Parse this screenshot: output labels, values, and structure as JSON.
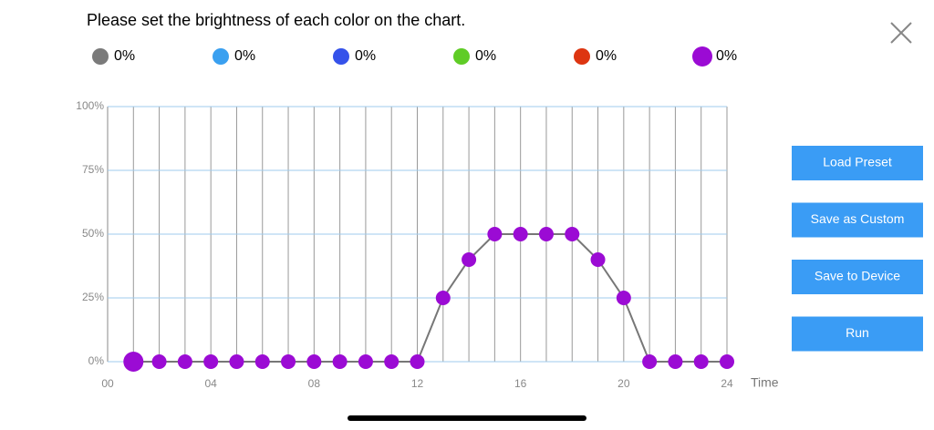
{
  "header": {
    "title": "Please set the brightness of each color on the chart."
  },
  "legend": [
    {
      "color": "#7a7a7a",
      "value": 0,
      "value_label": "0%"
    },
    {
      "color": "#3aa0f0",
      "value": 0,
      "value_label": "0%"
    },
    {
      "color": "#3552ea",
      "value": 0,
      "value_label": "0%"
    },
    {
      "color": "#5fcc26",
      "value": 0,
      "value_label": "0%"
    },
    {
      "color": "#dd3511",
      "value": 0,
      "value_label": "0%"
    },
    {
      "color": "#9b0bd4",
      "value": 0,
      "value_label": "0%"
    }
  ],
  "buttons": [
    "Load Preset",
    "Save as Custom",
    "Save to Device",
    "Run"
  ],
  "chart_data": {
    "type": "line",
    "xlabel": "Time",
    "x": [
      1,
      2,
      3,
      4,
      5,
      6,
      7,
      8,
      9,
      10,
      11,
      12,
      13,
      14,
      15,
      16,
      17,
      18,
      19,
      20,
      21,
      22,
      23,
      24
    ],
    "values": [
      0,
      0,
      0,
      0,
      0,
      0,
      0,
      0,
      0,
      0,
      0,
      0,
      25,
      40,
      50,
      50,
      50,
      50,
      40,
      25,
      0,
      0,
      0,
      0
    ],
    "color": "#9b0bd4",
    "line_color": "#777777",
    "xlim": [
      0,
      24
    ],
    "xticks": [
      {
        "value": 0,
        "label": "00"
      },
      {
        "value": 4,
        "label": "04"
      },
      {
        "value": 8,
        "label": "08"
      },
      12,
      16,
      20,
      24
    ],
    "ylim": [
      0,
      100
    ],
    "yticks": [
      {
        "value": 0,
        "label": "0%"
      },
      {
        "value": 25,
        "label": "25%"
      },
      {
        "value": 50,
        "label": "50%"
      },
      {
        "value": 75,
        "label": "75%"
      },
      {
        "value": 100,
        "label": "100%"
      }
    ],
    "grid": true
  }
}
